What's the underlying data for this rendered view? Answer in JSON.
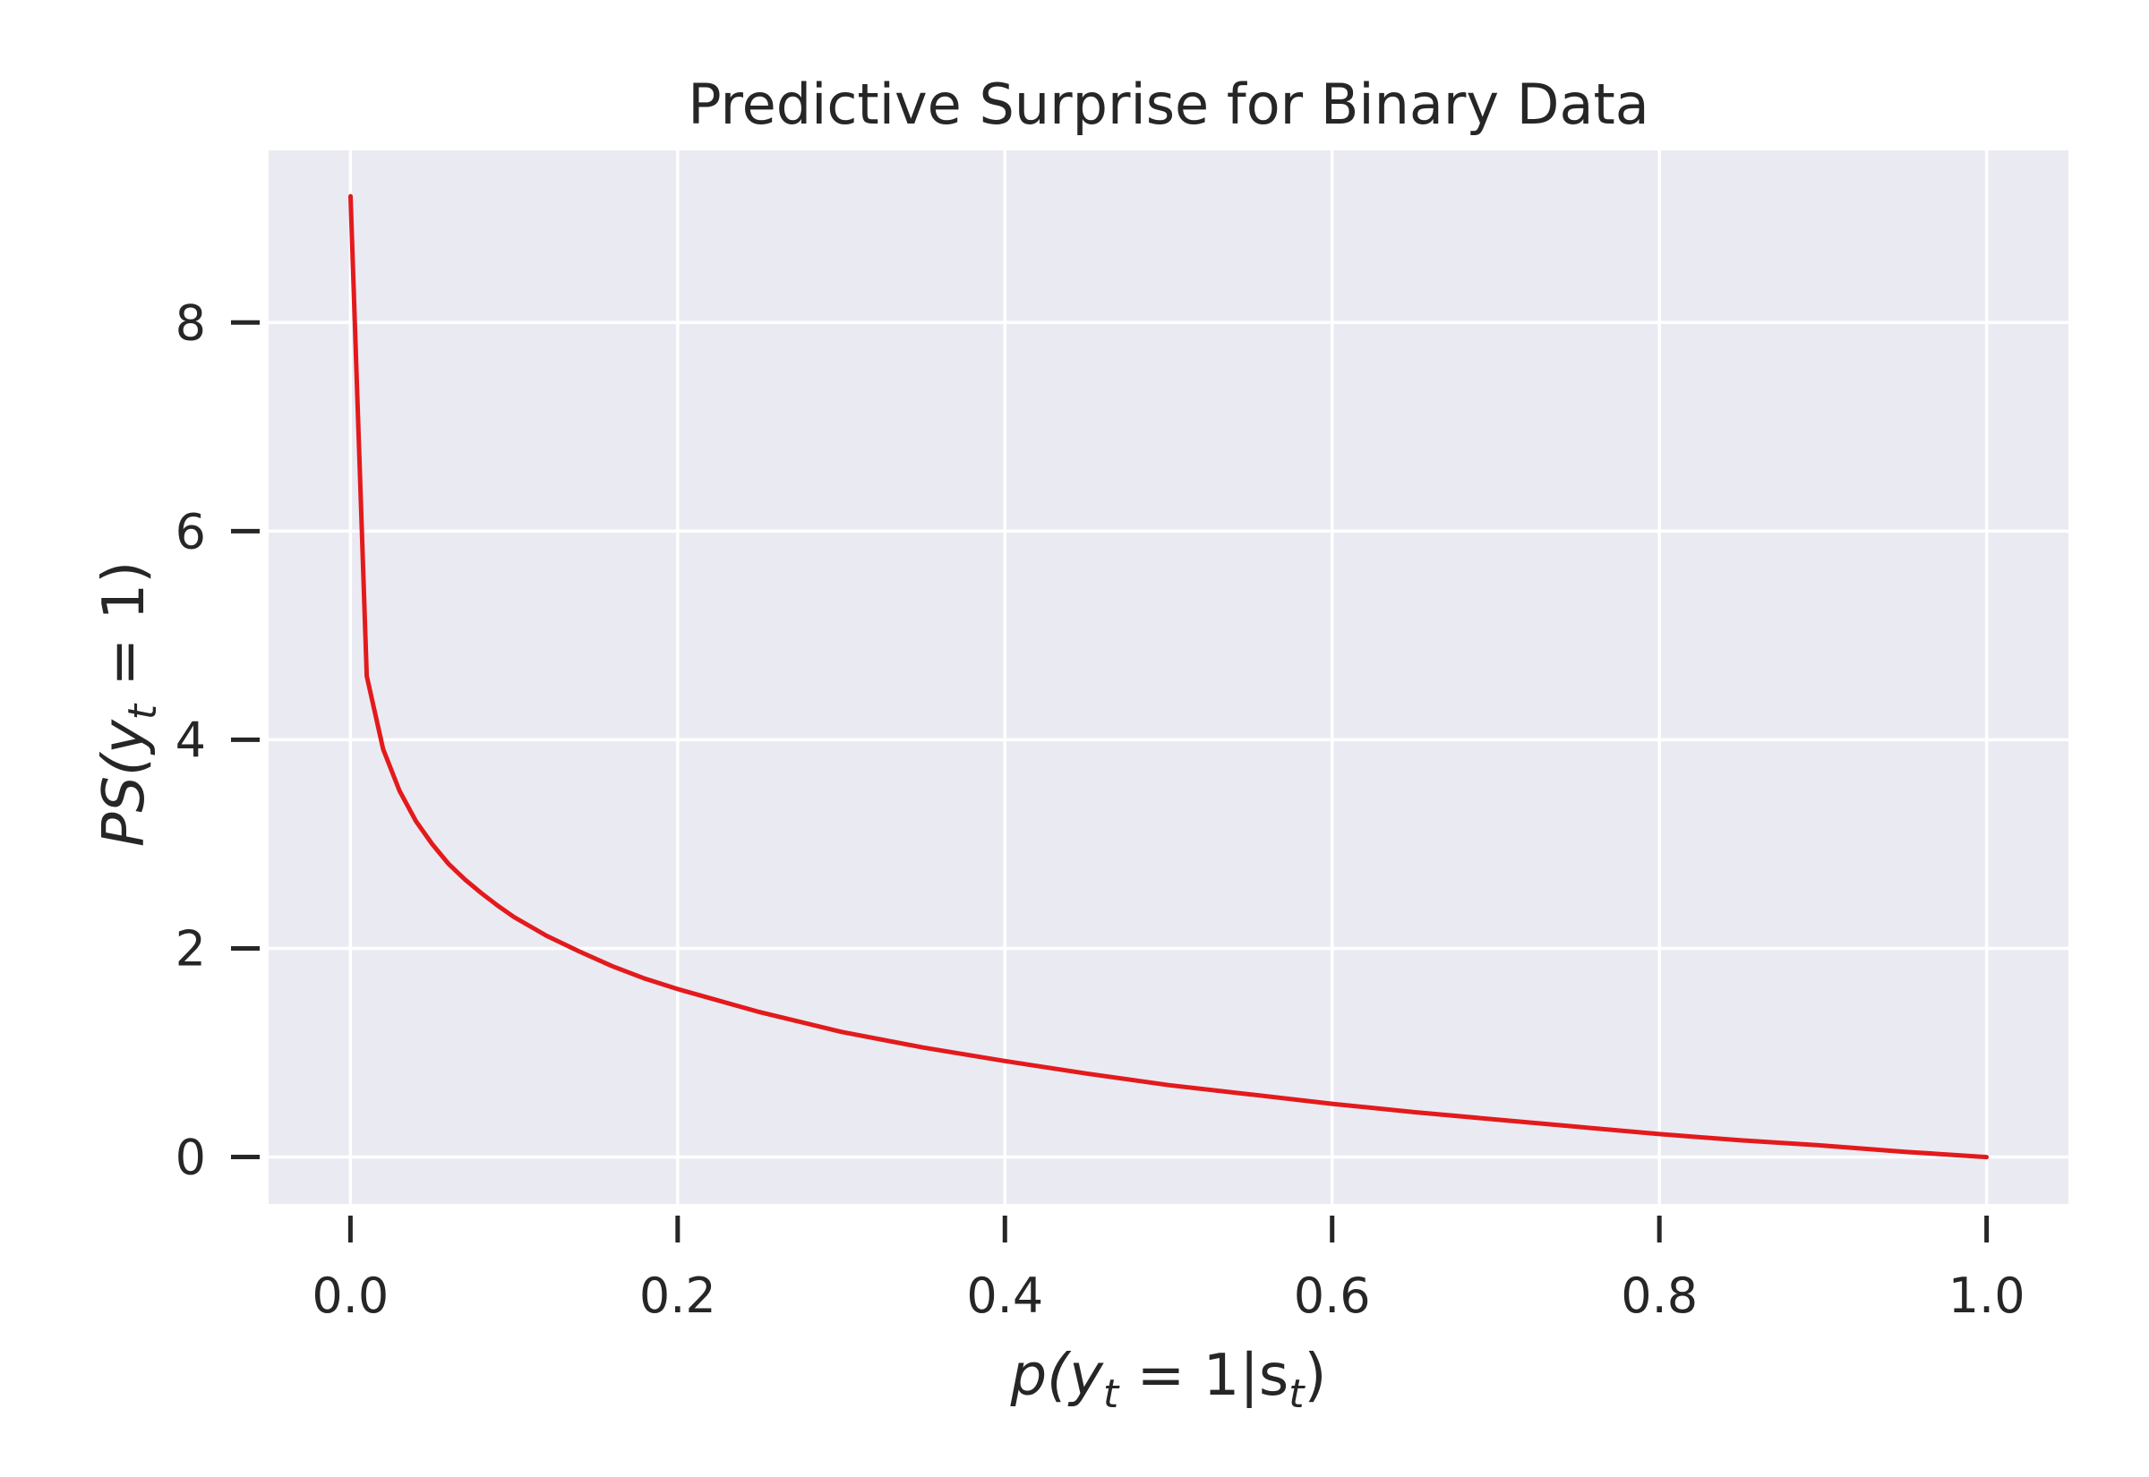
{
  "chart_data": {
    "type": "line",
    "title": "Predictive Surprise for Binary Data",
    "xlabel_parts": [
      "p(y",
      "t",
      " = 1|s",
      "t",
      ")"
    ],
    "ylabel_parts": [
      "PS(y",
      "t",
      " = 1)"
    ],
    "xlim": [
      -0.05,
      1.05
    ],
    "ylim": [
      -0.45,
      9.65
    ],
    "x_ticks": [
      0.0,
      0.2,
      0.4,
      0.6,
      0.8,
      1.0
    ],
    "x_tick_labels": [
      "0.0",
      "0.2",
      "0.4",
      "0.6",
      "0.8",
      "1.0"
    ],
    "y_ticks": [
      0,
      2,
      4,
      6,
      8
    ],
    "y_tick_labels": [
      "0",
      "2",
      "4",
      "6",
      "8"
    ],
    "grid": true,
    "background": "#EAEAF2",
    "grid_color": "#FFFFFF",
    "series": [
      {
        "color": "#E31A1C",
        "x": [
          0.0001,
          0.01,
          0.02,
          0.03,
          0.04,
          0.05,
          0.06,
          0.07,
          0.08,
          0.09,
          0.1,
          0.12,
          0.14,
          0.16,
          0.18,
          0.2,
          0.25,
          0.3,
          0.35,
          0.4,
          0.45,
          0.5,
          0.55,
          0.6,
          0.65,
          0.7,
          0.75,
          0.8,
          0.85,
          0.9,
          0.95,
          1.0
        ],
        "y": [
          9.21,
          4.61,
          3.91,
          3.51,
          3.22,
          3.0,
          2.81,
          2.66,
          2.53,
          2.41,
          2.3,
          2.12,
          1.97,
          1.83,
          1.71,
          1.61,
          1.39,
          1.2,
          1.05,
          0.92,
          0.8,
          0.69,
          0.6,
          0.51,
          0.43,
          0.36,
          0.29,
          0.22,
          0.16,
          0.11,
          0.05,
          0.0
        ]
      }
    ]
  }
}
